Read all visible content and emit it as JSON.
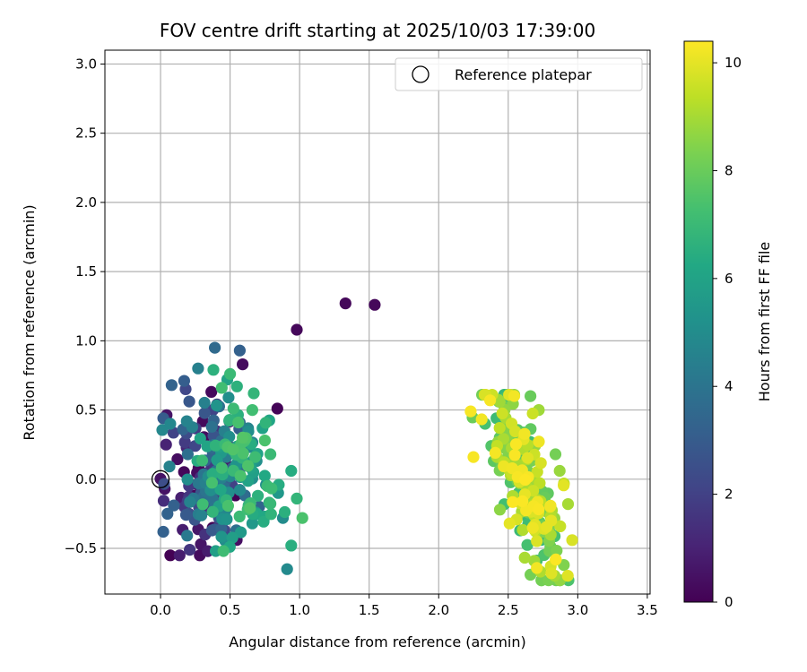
{
  "chart_data": {
    "type": "scatter",
    "title": "FOV centre drift starting at 2025/10/03 17:39:00",
    "xlabel": "Angular distance from reference (arcmin)",
    "ylabel": "Rotation from reference (arcmin)",
    "xlim": [
      -0.4,
      3.52
    ],
    "ylim": [
      -0.83,
      3.1
    ],
    "xticks": [
      0.0,
      0.5,
      1.0,
      1.5,
      2.0,
      2.5,
      3.0,
      3.5
    ],
    "xtick_labels": [
      "0.0",
      "0.5",
      "1.0",
      "1.5",
      "2.0",
      "2.5",
      "3.0",
      "3.5"
    ],
    "yticks": [
      -0.5,
      0.0,
      0.5,
      1.0,
      1.5,
      2.0,
      2.5,
      3.0
    ],
    "ytick_labels": [
      "−0.5",
      "0.0",
      "0.5",
      "1.0",
      "1.5",
      "2.0",
      "2.5",
      "3.0"
    ],
    "grid": true,
    "legend": {
      "position": "upper-right",
      "entries": [
        "Reference platepar"
      ]
    },
    "reference_point": {
      "x": 0.0,
      "y": 0.0,
      "label": "Reference platepar"
    },
    "colorbar": {
      "label": "Hours from first FF file",
      "range": [
        0,
        10.4
      ],
      "ticks": [
        0,
        2,
        4,
        6,
        8,
        10
      ],
      "tick_labels": [
        "0",
        "2",
        "4",
        "6",
        "8",
        "10"
      ],
      "colormap": "viridis"
    },
    "cluster_a": {
      "x_range": [
        0.0,
        1.05
      ],
      "y_range": [
        -0.55,
        0.95
      ],
      "hours_range": [
        0.0,
        7.6
      ],
      "count": 240
    },
    "cluster_b": {
      "x_range": [
        2.22,
        2.96
      ],
      "y_range": [
        -0.73,
        0.61
      ],
      "hours_range": [
        6.8,
        10.4
      ],
      "count": 210
    },
    "points": [
      {
        "x": 0.98,
        "y": 1.08,
        "h": 0.2
      },
      {
        "x": 1.33,
        "y": 1.27,
        "h": 0.2
      },
      {
        "x": 1.54,
        "y": 1.26,
        "h": 0.2
      },
      {
        "x": 0.84,
        "y": 0.51,
        "h": 0.1
      },
      {
        "x": 0.59,
        "y": 0.83,
        "h": 0.3
      },
      {
        "x": 0.57,
        "y": 0.93,
        "h": 3.2
      },
      {
        "x": 0.03,
        "y": -0.07,
        "h": 0.5
      },
      {
        "x": 0.02,
        "y": 0.44,
        "h": 3.0
      },
      {
        "x": 0.04,
        "y": 0.25,
        "h": 1.0
      },
      {
        "x": 0.08,
        "y": 0.68,
        "h": 3.3
      },
      {
        "x": 0.02,
        "y": -0.38,
        "h": 3.2
      },
      {
        "x": 0.05,
        "y": -0.25,
        "h": 3.3
      },
      {
        "x": 0.07,
        "y": 0.4,
        "h": 4.8
      },
      {
        "x": 0.17,
        "y": 0.71,
        "h": 3.1
      },
      {
        "x": 0.18,
        "y": 0.65,
        "h": 2.2
      },
      {
        "x": 0.27,
        "y": 0.8,
        "h": 4.5
      },
      {
        "x": 0.21,
        "y": -0.51,
        "h": 1.6
      },
      {
        "x": 0.29,
        "y": -0.47,
        "h": 0.6
      },
      {
        "x": 0.34,
        "y": -0.52,
        "h": 0.8
      },
      {
        "x": 0.32,
        "y": -0.4,
        "h": 1.5
      },
      {
        "x": 0.37,
        "y": -0.37,
        "h": 2.9
      },
      {
        "x": 0.38,
        "y": 0.79,
        "h": 6.6
      },
      {
        "x": 0.5,
        "y": 0.76,
        "h": 7.0
      },
      {
        "x": 0.48,
        "y": 0.72,
        "h": 6.0
      },
      {
        "x": 0.44,
        "y": 0.66,
        "h": 7.2
      },
      {
        "x": 0.55,
        "y": 0.67,
        "h": 6.6
      },
      {
        "x": 0.67,
        "y": 0.62,
        "h": 6.8
      },
      {
        "x": 0.66,
        "y": 0.5,
        "h": 7.2
      },
      {
        "x": 0.75,
        "y": 0.28,
        "h": 7.4
      },
      {
        "x": 0.79,
        "y": 0.18,
        "h": 7.0
      },
      {
        "x": 0.85,
        "y": -0.04,
        "h": 6.4
      },
      {
        "x": 0.88,
        "y": -0.28,
        "h": 5.0
      },
      {
        "x": 0.94,
        "y": 0.06,
        "h": 6.4
      },
      {
        "x": 0.98,
        "y": -0.14,
        "h": 6.8
      },
      {
        "x": 1.02,
        "y": -0.28,
        "h": 7.4
      },
      {
        "x": 0.94,
        "y": -0.48,
        "h": 6.5
      },
      {
        "x": 0.91,
        "y": -0.65,
        "h": 4.9
      },
      {
        "x": 0.75,
        "y": -0.27,
        "h": 6.2
      },
      {
        "x": 0.7,
        "y": -0.12,
        "h": 6.6
      },
      {
        "x": 0.66,
        "y": -0.32,
        "h": 5.5
      },
      {
        "x": 0.44,
        "y": -0.27,
        "h": 4.3
      },
      {
        "x": 2.23,
        "y": 0.49,
        "h": 10.3
      },
      {
        "x": 2.25,
        "y": 0.16,
        "h": 10.3
      },
      {
        "x": 2.33,
        "y": 0.61,
        "h": 9.8
      },
      {
        "x": 2.37,
        "y": 0.57,
        "h": 10.3
      },
      {
        "x": 2.66,
        "y": 0.6,
        "h": 8.0
      },
      {
        "x": 2.72,
        "y": 0.5,
        "h": 8.9
      },
      {
        "x": 2.66,
        "y": -0.69,
        "h": 8.2
      },
      {
        "x": 2.79,
        "y": -0.73,
        "h": 8.3
      },
      {
        "x": 2.81,
        "y": -0.68,
        "h": 9.9
      },
      {
        "x": 2.9,
        "y": -0.62,
        "h": 8.4
      },
      {
        "x": 2.96,
        "y": -0.44,
        "h": 9.8
      },
      {
        "x": 2.93,
        "y": -0.18,
        "h": 9.0
      },
      {
        "x": 2.87,
        "y": 0.06,
        "h": 8.8
      },
      {
        "x": 2.84,
        "y": 0.18,
        "h": 8.2
      },
      {
        "x": 2.44,
        "y": -0.22,
        "h": 8.6
      },
      {
        "x": 2.51,
        "y": -0.32,
        "h": 10.0
      }
    ]
  }
}
